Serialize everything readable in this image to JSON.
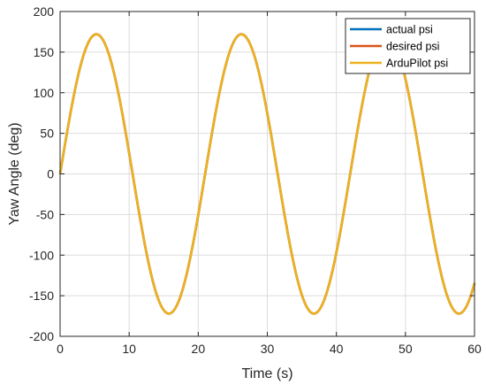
{
  "chart_data": {
    "type": "line",
    "title": "",
    "xlabel": "Time (s)",
    "ylabel": "Yaw Angle (deg)",
    "xlim": [
      0,
      60
    ],
    "ylim": [
      -200,
      200
    ],
    "xticks": [
      0,
      10,
      20,
      30,
      40,
      50,
      60
    ],
    "yticks": [
      -200,
      -150,
      -100,
      -50,
      0,
      50,
      100,
      150,
      200
    ],
    "grid": true,
    "legend_position": "top-right",
    "series": [
      {
        "name": "actual psi",
        "color": "#0072BD",
        "shape": "sine",
        "amplitude": 172,
        "period": 21,
        "x_start": 0,
        "x_end": 60
      },
      {
        "name": "desired psi",
        "color": "#D95319",
        "shape": "sine",
        "amplitude": 172,
        "period": 21,
        "x_start": 0,
        "x_end": 60
      },
      {
        "name": "ArduPilot psi",
        "color": "#EDB120",
        "shape": "sine",
        "amplitude": 172,
        "period": 21,
        "x_start": 0,
        "x_end": 60
      }
    ]
  }
}
